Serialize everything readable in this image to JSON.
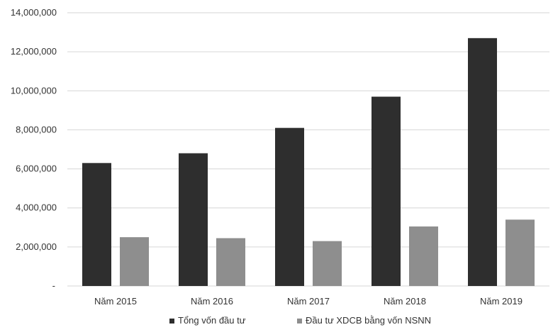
{
  "chart_data": {
    "type": "bar",
    "categories": [
      "Năm 2015",
      "Năm 2016",
      "Năm 2017",
      "Năm 2018",
      "Năm 2019"
    ],
    "series": [
      {
        "name": "Tổng vốn đầu tư",
        "color": "#2e2e2e",
        "values": [
          6300000,
          6800000,
          8100000,
          9700000,
          12700000
        ]
      },
      {
        "name": "Đầu tư XDCB bằng vốn NSNN",
        "color": "#8e8e8e",
        "values": [
          2500000,
          2450000,
          2300000,
          3050000,
          3400000
        ]
      }
    ],
    "ylim": [
      0,
      14000000
    ],
    "yticks": [
      {
        "value": 0,
        "label": "-"
      },
      {
        "value": 2000000,
        "label": "2,000,000"
      },
      {
        "value": 4000000,
        "label": "4,000,000"
      },
      {
        "value": 6000000,
        "label": "6,000,000"
      },
      {
        "value": 8000000,
        "label": "8,000,000"
      },
      {
        "value": 10000000,
        "label": "10,000,000"
      },
      {
        "value": 12000000,
        "label": "12,000,000"
      },
      {
        "value": 14000000,
        "label": "14,000,000"
      }
    ],
    "grid": true,
    "legend_position": "bottom"
  }
}
